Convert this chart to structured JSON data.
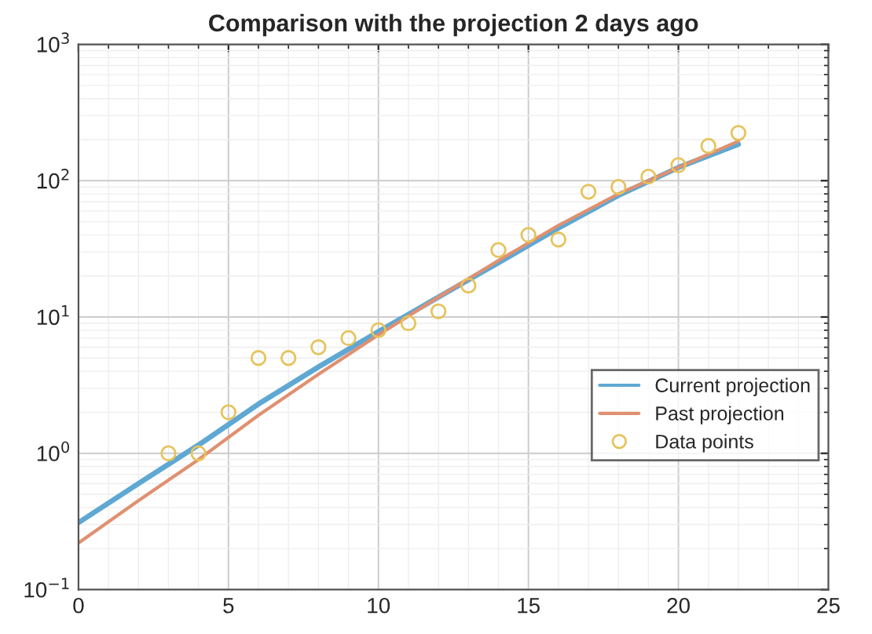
{
  "chart_data": {
    "type": "line",
    "title": "Comparison with the projection 2 days ago",
    "series": [
      {
        "name": "Current projection",
        "color": "#5fa8d3",
        "marker": "none",
        "line_style": "solid",
        "x": [
          0,
          2,
          4,
          6,
          8,
          10,
          12,
          14,
          16,
          18,
          20,
          22
        ],
        "values": [
          0.31,
          0.6,
          1.15,
          2.3,
          4.3,
          7.8,
          14,
          25,
          45,
          78,
          125,
          185
        ]
      },
      {
        "name": "Past projection",
        "color": "#e09070",
        "marker": "none",
        "line_style": "solid",
        "x": [
          0,
          2,
          4,
          6,
          8,
          10,
          12,
          14,
          16,
          18,
          20,
          22
        ],
        "values": [
          0.22,
          0.45,
          0.9,
          1.9,
          3.8,
          7.4,
          14,
          26,
          47,
          80,
          125,
          195
        ]
      },
      {
        "name": "Data points",
        "type": "scatter",
        "color": "#e6c35c",
        "marker": "circle",
        "x": [
          3,
          4,
          5,
          6,
          7,
          8,
          9,
          10,
          11,
          12,
          13,
          14,
          15,
          16,
          17,
          18,
          19,
          20,
          21,
          22
        ],
        "values": [
          1,
          1,
          2,
          5,
          5,
          6,
          7,
          8,
          9,
          11,
          17,
          31,
          40,
          37,
          83,
          90,
          107,
          130,
          180,
          224
        ]
      }
    ],
    "xlim": [
      0,
      25
    ],
    "xticks": [
      0,
      5,
      10,
      15,
      20,
      25
    ],
    "ylim": [
      0.1,
      1000
    ],
    "yticks": [
      {
        "value": 0.1,
        "label": "10$^{−1}$"
      },
      {
        "value": 1,
        "label": "10$^{0}$"
      },
      {
        "value": 10,
        "label": "10$^{1}$"
      },
      {
        "value": 100,
        "label": "10$^{2}$"
      },
      {
        "value": 1000,
        "label": "10$^{3}$"
      }
    ],
    "log": "y",
    "grid": true,
    "legend": "right"
  }
}
